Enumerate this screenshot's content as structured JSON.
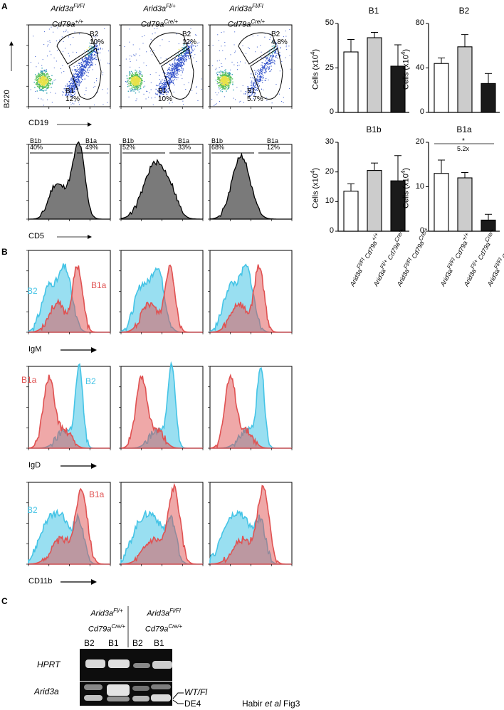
{
  "panel_labels": {
    "a": "A",
    "b": "B",
    "c": "C"
  },
  "genotype_headers": [
    {
      "line1": "Arid3aFl/Fl",
      "line2": "Cd79a+/+"
    },
    {
      "line1": "Arid3aFl/+",
      "line2": "Cd79aCre/+"
    },
    {
      "line1": "Arid3aFl/Fl",
      "line2": "Cd79aCre/+"
    }
  ],
  "flow_b220_cd19": {
    "y_axis_label": "B220",
    "x_axis_label": "CD19",
    "gates": [
      {
        "b2": "B2",
        "b2_pct": "10%",
        "b1": "B1",
        "b1_pct": "12%"
      },
      {
        "b2": "B2",
        "b2_pct": "12%",
        "b1": "B1",
        "b1_pct": "10%"
      },
      {
        "b2": "B2",
        "b2_pct": "4.8%",
        "b1": "B1",
        "b1_pct": "5.7%"
      }
    ]
  },
  "flow_cd5": {
    "x_axis_label": "CD5",
    "gates": [
      {
        "b1b": "B1b",
        "b1b_pct": "40%",
        "b1a": "B1a",
        "b1a_pct": "49%"
      },
      {
        "b1b": "B1b",
        "b1b_pct": "52%",
        "b1a": "B1a",
        "b1a_pct": "33%"
      },
      {
        "b1b": "B1b",
        "b1b_pct": "68%",
        "b1a": "B1a",
        "b1a_pct": "12%"
      }
    ]
  },
  "histogram_markers": [
    {
      "label": "IgM",
      "series_left": "B2",
      "series_right": "B1a"
    },
    {
      "label": "IgD",
      "series_left": "B1a",
      "series_right": "B2"
    },
    {
      "label": "CD11b",
      "series_left": "B2",
      "series_right": "B1a"
    }
  ],
  "colors": {
    "b1a_red": "#e05252",
    "b2_cyan": "#45c4e6",
    "white_bar": "#ffffff",
    "grey_bar": "#cccccc",
    "black_bar": "#1a1a1a"
  },
  "chart_data": [
    {
      "type": "bar",
      "title": "B1",
      "ylabel": "Cells (x10^4)",
      "ylim": [
        0,
        50
      ],
      "ticks": [
        0,
        25,
        50
      ],
      "categories": [
        "Arid3aFl/Fl Cd79a+/+",
        "Arid3aFl/+ Cd79aCre/+",
        "Arid3aFl/Fl Cd79aCre/+"
      ],
      "values": [
        34,
        42,
        26
      ],
      "errors": [
        7,
        3,
        12
      ]
    },
    {
      "type": "bar",
      "title": "B2",
      "ylabel": "Cells (x10^4)",
      "ylim": [
        0,
        80
      ],
      "ticks": [
        0,
        40,
        80
      ],
      "categories": [
        "Arid3aFl/Fl Cd79a+/+",
        "Arid3aFl/+ Cd79aCre/+",
        "Arid3aFl/Fl Cd79aCre/+"
      ],
      "values": [
        44,
        59,
        26
      ],
      "errors": [
        5,
        11,
        9
      ]
    },
    {
      "type": "bar",
      "title": "B1b",
      "ylabel": "Cells (x10^4)",
      "ylim": [
        0,
        30
      ],
      "ticks": [
        0,
        10,
        20,
        30
      ],
      "categories": [
        "Arid3aFl/Fl Cd79a+/+",
        "Arid3aFl/+ Cd79aCre/+",
        "Arid3aFl/Fl Cd79aCre/+"
      ],
      "values": [
        13.5,
        20.5,
        17
      ],
      "errors": [
        2.5,
        2.5,
        8.5
      ]
    },
    {
      "type": "bar",
      "title": "B1a",
      "ylabel": "Cells (x10^4)",
      "ylim": [
        0,
        20
      ],
      "ticks": [
        0,
        10,
        20
      ],
      "categories": [
        "Arid3aFl/Fl Cd79a+/+",
        "Arid3aFl/+ Cd79aCre/+",
        "Arid3aFl/Fl Cd79aCre/+"
      ],
      "values": [
        13,
        12,
        2.5
      ],
      "errors": [
        3,
        1.2,
        1.3
      ],
      "annotation": {
        "star": "*",
        "fold": "5.2x"
      }
    }
  ],
  "x_category_labels": [
    {
      "gene": "Arid3aFl/Fl",
      "cre": "Cd79a+/+"
    },
    {
      "gene": "Arid3aFl/+",
      "cre": "Cd79aCre/+"
    },
    {
      "gene": "Arid3aFl/Fl",
      "cre": "Cd79aCre/+"
    }
  ],
  "gel": {
    "group1": {
      "line1": "Arid3aFl/+",
      "line2": "Cd79aCre/+"
    },
    "group2": {
      "line1": "Arid3aFl/Fl",
      "line2": "Cd79aCre/+"
    },
    "lanes": [
      "B2",
      "B1",
      "B2",
      "B1"
    ],
    "row1_label": "HPRT",
    "row2_label": "Arid3a",
    "band_wt": "WT/Fl",
    "band_de4": "DE4",
    "caption_pre": "Habir ",
    "caption_italic": "et al",
    "caption_post": " Fig3"
  }
}
